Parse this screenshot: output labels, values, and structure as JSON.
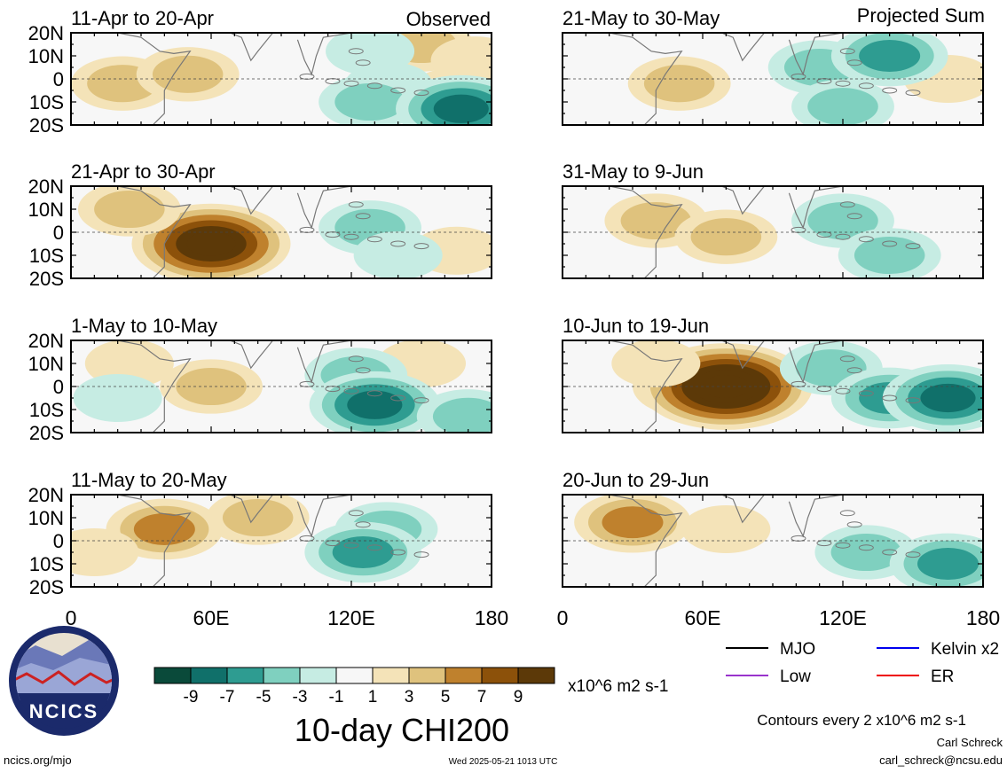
{
  "header": {
    "left_label": "Observed",
    "right_label": "Projected Sum"
  },
  "chart_data": {
    "type": "heatmap",
    "title": "10-day CHI200",
    "units": "x10^6 m2 s-1",
    "x_ticks": [
      "0",
      "60E",
      "120E",
      "180"
    ],
    "y_ticks": [
      "20N",
      "10N",
      "0",
      "10S",
      "20S"
    ],
    "xlim": [
      0,
      180
    ],
    "ylim": [
      -20,
      20
    ],
    "colorbar": {
      "labels": [
        "-9",
        "-7",
        "-5",
        "-3",
        "-1",
        "1",
        "3",
        "5",
        "7",
        "9"
      ],
      "colors": [
        "#0a4a3a",
        "#10706a",
        "#2e9c91",
        "#7fd0bf",
        "#c6ece3",
        "#f7f7f7",
        "#f4e3b8",
        "#dfc27d",
        "#bf812d",
        "#8c510a",
        "#5c3908"
      ]
    },
    "panels": [
      {
        "period": "11-Apr to 20-Apr",
        "column": "Observed",
        "pos": [
          [
            22,
            -2,
            2
          ],
          [
            50,
            2,
            2
          ],
          [
            150,
            15,
            2
          ],
          [
            165,
            -7,
            2
          ],
          [
            173,
            8,
            1
          ]
        ],
        "neg": [
          [
            128,
            12,
            1
          ],
          [
            136,
            -3,
            1
          ],
          [
            128,
            -10,
            2
          ],
          [
            167,
            -13,
            4
          ]
        ]
      },
      {
        "period": "21-Apr to 30-Apr",
        "column": "Observed",
        "pos": [
          [
            60,
            -5,
            6
          ],
          [
            25,
            10,
            2
          ],
          [
            165,
            -8,
            1
          ]
        ],
        "neg": [
          [
            128,
            2,
            2
          ],
          [
            140,
            -10,
            1
          ]
        ]
      },
      {
        "period": "1-May to 10-May",
        "column": "Observed",
        "pos": [
          [
            25,
            10,
            1
          ],
          [
            60,
            0,
            2
          ],
          [
            150,
            10,
            1
          ]
        ],
        "neg": [
          [
            20,
            -5,
            1
          ],
          [
            122,
            5,
            2
          ],
          [
            130,
            -8,
            4
          ],
          [
            170,
            -13,
            2
          ]
        ]
      },
      {
        "period": "11-May to 20-May",
        "column": "Observed",
        "pos": [
          [
            40,
            5,
            3
          ],
          [
            10,
            -5,
            1
          ],
          [
            80,
            10,
            2
          ]
        ],
        "neg": [
          [
            135,
            5,
            2
          ],
          [
            125,
            -5,
            3
          ]
        ]
      },
      {
        "period": "21-May to 30-May",
        "column": "Projected Sum",
        "pos": [
          [
            50,
            -2,
            2
          ],
          [
            165,
            0,
            1
          ]
        ],
        "neg": [
          [
            110,
            5,
            2
          ],
          [
            140,
            10,
            3
          ],
          [
            120,
            -12,
            2
          ]
        ]
      },
      {
        "period": "31-May to 9-Jun",
        "column": "Projected Sum",
        "pos": [
          [
            40,
            5,
            2
          ],
          [
            70,
            -2,
            2
          ]
        ],
        "neg": [
          [
            120,
            5,
            2
          ],
          [
            140,
            -10,
            2
          ]
        ]
      },
      {
        "period": "10-Jun to 19-Jun",
        "column": "Projected Sum",
        "pos": [
          [
            55,
            0,
            3
          ],
          [
            70,
            0,
            7
          ],
          [
            40,
            10,
            1
          ]
        ],
        "neg": [
          [
            115,
            8,
            2
          ],
          [
            140,
            -5,
            3
          ],
          [
            165,
            -5,
            4
          ]
        ]
      },
      {
        "period": "20-Jun to 29-Jun",
        "column": "Projected Sum",
        "pos": [
          [
            30,
            8,
            3
          ],
          [
            70,
            5,
            1
          ]
        ],
        "neg": [
          [
            130,
            -5,
            2
          ],
          [
            165,
            -10,
            3
          ]
        ]
      }
    ],
    "legend": {
      "columns": [
        [
          {
            "label": "MJO",
            "color": "#000000"
          },
          {
            "label": "Low",
            "color": "#9933cc"
          }
        ],
        [
          {
            "label": "Kelvin x2",
            "color": "#0000ee"
          },
          {
            "label": "ER",
            "color": "#ee0000"
          }
        ]
      ]
    },
    "contour_note": "Contours every 2 x10^6 m2 s-1"
  },
  "footer": {
    "logo_text": "NCICS",
    "website": "ncics.org/mjo",
    "timestamp": "Wed 2025-05-21 1013 UTC",
    "author": "Carl Schreck",
    "email": "carl_schreck@ncsu.edu"
  }
}
